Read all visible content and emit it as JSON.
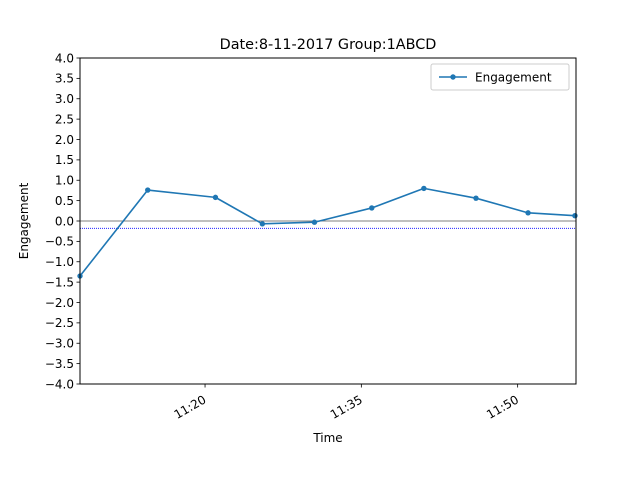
{
  "chart_data": {
    "type": "line",
    "title": "Date:8-11-2017 Group:1ABCD",
    "xlabel": "Time",
    "ylabel": "Engagement",
    "x_unit": "time of day (HH:MM)",
    "xlim": [
      "11:08",
      "11:55.6"
    ],
    "ylim": [
      -4.0,
      4.0
    ],
    "y_ticks": [
      -4.0,
      -3.5,
      -3.0,
      -2.5,
      -2.0,
      -1.5,
      -1.0,
      -0.5,
      0.0,
      0.5,
      1.0,
      1.5,
      2.0,
      2.5,
      3.0,
      3.5,
      4.0
    ],
    "y_tick_labels": [
      "−4.0",
      "−3.5",
      "−3.0",
      "−2.5",
      "−2.0",
      "−1.5",
      "−1.0",
      "−0.5",
      "0.0",
      "0.5",
      "1.0",
      "1.5",
      "2.0",
      "2.5",
      "3.0",
      "3.5",
      "4.0"
    ],
    "x_ticks": [
      "11:20",
      "11:35",
      "11:50"
    ],
    "x_tick_labels": [
      "11:20",
      "11:35",
      "11:50"
    ],
    "grid": false,
    "legend_position": "top-right",
    "series": [
      {
        "name": "Engagement",
        "color": "#1f77b4",
        "marker": "circle",
        "x": [
          "11:08",
          "11:14.5",
          "11:21",
          "11:25.5",
          "11:30.5",
          "11:36",
          "11:41",
          "11:46",
          "11:51",
          "11:55.5"
        ],
        "y": [
          -1.35,
          0.76,
          0.58,
          -0.07,
          -0.03,
          0.32,
          0.8,
          0.56,
          0.2,
          0.13
        ]
      }
    ],
    "reference_lines": [
      {
        "y": 0.0,
        "color": "#000000",
        "style": "solid"
      },
      {
        "y": -0.18,
        "color": "#0000ff",
        "style": "dotted"
      }
    ]
  }
}
